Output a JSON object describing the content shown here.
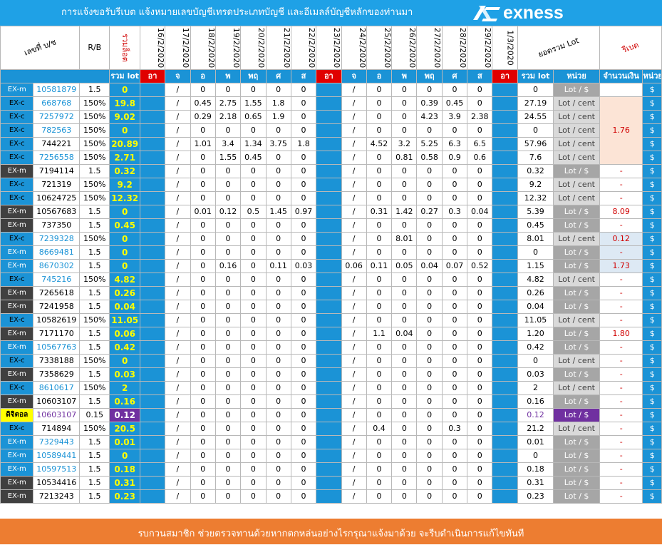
{
  "header": {
    "title": "การแจ้งขอรับรีเบต  แจ้งหมายเลขบัญชีเทรดประเภทบัญชี และอีเมลล์บัญชีหลักของท่านมา",
    "logo_text": "exness",
    "brand_color": "#1fa1e6"
  },
  "columns": {
    "account": "เลขที่ บ/ช",
    "rb": "R/B",
    "total_lot_header": "รวมล็อต",
    "dates": [
      "16/2/2020",
      "17/2/2020",
      "18/2/2020",
      "19/2/2020",
      "20/2/2020",
      "21/2/2020",
      "22/2/2020",
      "23/2/2020",
      "24/2/2020",
      "25/2/2020",
      "26/2/2020",
      "27/2/2020",
      "28/2/2020",
      "29/2/2020",
      "1/3/2020"
    ],
    "total_lot": "ยอดรวม Lot",
    "rebate": "รีเบต"
  },
  "subheader": {
    "sum_lot": "รวม lot",
    "days": [
      "อา",
      "จ",
      "อ",
      "พ",
      "พฤ",
      "ศ",
      "ส",
      "อา",
      "จ",
      "อ",
      "พ",
      "พฤ",
      "ศ",
      "ส",
      "อา"
    ],
    "sum_lot2": "รวม lot",
    "unit": "หน่วย",
    "amount": "จำนวนเงิน",
    "unit2": "หน่วย"
  },
  "rows": [
    {
      "type": "EX-m",
      "acc": "10581879",
      "rb": "1.5",
      "total": "0",
      "days": [
        "",
        "/",
        "0",
        "0",
        "0",
        "0",
        "0",
        "",
        "/",
        "0",
        "0",
        "0",
        "0",
        "0",
        ""
      ],
      "sum": "0",
      "unit": "Lot / $",
      "rebate": "",
      "cur": "$"
    },
    {
      "type": "EX-c",
      "acc": "668768",
      "rb": "150%",
      "total": "19.8",
      "days": [
        "",
        "/",
        "0.45",
        "2.75",
        "1.55",
        "1.8",
        "0",
        "",
        "/",
        "0",
        "0",
        "0.39",
        "0.45",
        "0",
        ""
      ],
      "sum": "27.19",
      "unit": "Lot / cent",
      "rebate": "",
      "cur": "$"
    },
    {
      "type": "EX-c",
      "acc": "7257972",
      "rb": "150%",
      "total": "9.02",
      "days": [
        "",
        "/",
        "0.29",
        "2.18",
        "0.65",
        "1.9",
        "0",
        "",
        "/",
        "0",
        "0",
        "4.23",
        "3.9",
        "2.38",
        ""
      ],
      "sum": "24.55",
      "unit": "Lot / cent",
      "rebate": "",
      "cur": "$"
    },
    {
      "type": "EX-c",
      "acc": "782563",
      "rb": "150%",
      "total": "0",
      "days": [
        "",
        "/",
        "0",
        "0",
        "0",
        "0",
        "0",
        "",
        "/",
        "0",
        "0",
        "0",
        "0",
        "0",
        ""
      ],
      "sum": "0",
      "unit": "Lot / cent",
      "rebate": "",
      "cur": "$"
    },
    {
      "type": "EX-c",
      "acc": "744221",
      "rb": "150%",
      "total": "20.89",
      "days": [
        "",
        "/",
        "1.01",
        "3.4",
        "1.34",
        "3.75",
        "1.8",
        "",
        "/",
        "4.52",
        "3.2",
        "5.25",
        "6.3",
        "6.5",
        ""
      ],
      "sum": "57.96",
      "unit": "Lot / cent",
      "rebate": "",
      "cur": "$"
    },
    {
      "type": "EX-c",
      "acc": "7256558",
      "rb": "150%",
      "total": "2.71",
      "days": [
        "",
        "/",
        "0",
        "1.55",
        "0.45",
        "0",
        "0",
        "",
        "/",
        "0",
        "0.81",
        "0.58",
        "0.9",
        "0.6",
        ""
      ],
      "sum": "7.6",
      "unit": "Lot / cent",
      "rebate": "",
      "cur": "$"
    },
    {
      "type": "EX-m",
      "acc": "7194114",
      "rb": "1.5",
      "total": "0.32",
      "days": [
        "",
        "/",
        "0",
        "0",
        "0",
        "0",
        "0",
        "",
        "/",
        "0",
        "0",
        "0",
        "0",
        "0",
        ""
      ],
      "sum": "0.32",
      "unit": "Lot / $",
      "rebate": "-",
      "cur": "$"
    },
    {
      "type": "EX-c",
      "acc": "721319",
      "rb": "150%",
      "total": "9.2",
      "days": [
        "",
        "/",
        "0",
        "0",
        "0",
        "0",
        "0",
        "",
        "/",
        "0",
        "0",
        "0",
        "0",
        "0",
        ""
      ],
      "sum": "9.2",
      "unit": "Lot / cent",
      "rebate": "-",
      "cur": "$"
    },
    {
      "type": "EX-c",
      "acc": "10624725",
      "rb": "150%",
      "total": "12.32",
      "days": [
        "",
        "/",
        "0",
        "0",
        "0",
        "0",
        "0",
        "",
        "/",
        "0",
        "0",
        "0",
        "0",
        "0",
        ""
      ],
      "sum": "12.32",
      "unit": "Lot / cent",
      "rebate": "-",
      "cur": "$"
    },
    {
      "type": "EX-m",
      "acc": "10567683",
      "rb": "1.5",
      "total": "0",
      "days": [
        "",
        "/",
        "0.01",
        "0.12",
        "0.5",
        "1.45",
        "0.97",
        "",
        "/",
        "0.31",
        "1.42",
        "0.27",
        "0.3",
        "0.04",
        ""
      ],
      "sum": "5.39",
      "unit": "Lot / $",
      "rebate": "8.09",
      "cur": "$"
    },
    {
      "type": "EX-m",
      "acc": "737350",
      "rb": "1.5",
      "total": "0.45",
      "days": [
        "",
        "/",
        "0",
        "0",
        "0",
        "0",
        "0",
        "",
        "/",
        "0",
        "0",
        "0",
        "0",
        "0",
        ""
      ],
      "sum": "0.45",
      "unit": "Lot / $",
      "rebate": "-",
      "cur": "$"
    },
    {
      "type": "EX-c",
      "acc": "7239328",
      "rb": "150%",
      "total": "0",
      "days": [
        "",
        "/",
        "0",
        "0",
        "0",
        "0",
        "0",
        "",
        "/",
        "0",
        "8.01",
        "0",
        "0",
        "0",
        ""
      ],
      "sum": "8.01",
      "unit": "Lot / cent",
      "rebate": "0.12",
      "cur": "$"
    },
    {
      "type": "EX-m",
      "acc": "8669481",
      "rb": "1.5",
      "total": "0",
      "days": [
        "",
        "/",
        "0",
        "0",
        "0",
        "0",
        "0",
        "",
        "/",
        "0",
        "0",
        "0",
        "0",
        "0",
        ""
      ],
      "sum": "0",
      "unit": "Lot / $",
      "rebate": "-",
      "cur": "$"
    },
    {
      "type": "EX-m",
      "acc": "8670302",
      "rb": "1.5",
      "total": "0",
      "days": [
        "",
        "/",
        "0",
        "0.16",
        "0",
        "0.11",
        "0.03",
        "",
        "0.06",
        "0.11",
        "0.05",
        "0.04",
        "0.07",
        "0.52",
        ""
      ],
      "sum": "1.15",
      "unit": "Lot / $",
      "rebate": "1.73",
      "cur": "$"
    },
    {
      "type": "EX-c",
      "acc": "745216",
      "rb": "150%",
      "total": "4.82",
      "days": [
        "",
        "/",
        "0",
        "0",
        "0",
        "0",
        "0",
        "",
        "/",
        "0",
        "0",
        "0",
        "0",
        "0",
        ""
      ],
      "sum": "4.82",
      "unit": "Lot / cent",
      "rebate": "-",
      "cur": "$"
    },
    {
      "type": "EX-m",
      "acc": "7265618",
      "rb": "1.5",
      "total": "0.26",
      "days": [
        "",
        "/",
        "0",
        "0",
        "0",
        "0",
        "0",
        "",
        "/",
        "0",
        "0",
        "0",
        "0",
        "0",
        ""
      ],
      "sum": "0.26",
      "unit": "Lot / $",
      "rebate": "-",
      "cur": "$"
    },
    {
      "type": "EX-m",
      "acc": "7241958",
      "rb": "1.5",
      "total": "0.04",
      "days": [
        "",
        "/",
        "0",
        "0",
        "0",
        "0",
        "0",
        "",
        "/",
        "0",
        "0",
        "0",
        "0",
        "0",
        ""
      ],
      "sum": "0.04",
      "unit": "Lot / $",
      "rebate": "-",
      "cur": "$"
    },
    {
      "type": "EX-c",
      "acc": "10582619",
      "rb": "150%",
      "total": "11.05",
      "days": [
        "",
        "/",
        "0",
        "0",
        "0",
        "0",
        "0",
        "",
        "/",
        "0",
        "0",
        "0",
        "0",
        "0",
        ""
      ],
      "sum": "11.05",
      "unit": "Lot / cent",
      "rebate": "-",
      "cur": "$"
    },
    {
      "type": "EX-m",
      "acc": "7171170",
      "rb": "1.5",
      "total": "0.06",
      "days": [
        "",
        "/",
        "0",
        "0",
        "0",
        "0",
        "0",
        "",
        "/",
        "1.1",
        "0.04",
        "0",
        "0",
        "0",
        ""
      ],
      "sum": "1.20",
      "unit": "Lot / $",
      "rebate": "1.80",
      "cur": "$"
    },
    {
      "type": "EX-m",
      "acc": "10567763",
      "rb": "1.5",
      "total": "0.42",
      "days": [
        "",
        "/",
        "0",
        "0",
        "0",
        "0",
        "0",
        "",
        "/",
        "0",
        "0",
        "0",
        "0",
        "0",
        ""
      ],
      "sum": "0.42",
      "unit": "Lot / $",
      "rebate": "-",
      "cur": "$"
    },
    {
      "type": "EX-c",
      "acc": "7338188",
      "rb": "150%",
      "total": "0",
      "days": [
        "",
        "/",
        "0",
        "0",
        "0",
        "0",
        "0",
        "",
        "/",
        "0",
        "0",
        "0",
        "0",
        "0",
        ""
      ],
      "sum": "0",
      "unit": "Lot / cent",
      "rebate": "-",
      "cur": "$"
    },
    {
      "type": "EX-m",
      "acc": "7358629",
      "rb": "1.5",
      "total": "0.03",
      "days": [
        "",
        "/",
        "0",
        "0",
        "0",
        "0",
        "0",
        "",
        "/",
        "0",
        "0",
        "0",
        "0",
        "0",
        ""
      ],
      "sum": "0.03",
      "unit": "Lot / $",
      "rebate": "-",
      "cur": "$"
    },
    {
      "type": "EX-c",
      "acc": "8610617",
      "rb": "150%",
      "total": "2",
      "days": [
        "",
        "/",
        "0",
        "0",
        "0",
        "0",
        "0",
        "",
        "/",
        "0",
        "0",
        "0",
        "0",
        "0",
        ""
      ],
      "sum": "2",
      "unit": "Lot / cent",
      "rebate": "-",
      "cur": "$"
    },
    {
      "type": "EX-m",
      "acc": "10603107",
      "rb": "1.5",
      "total": "0.16",
      "days": [
        "",
        "/",
        "0",
        "0",
        "0",
        "0",
        "0",
        "",
        "/",
        "0",
        "0",
        "0",
        "0",
        "0",
        ""
      ],
      "sum": "0.16",
      "unit": "Lot / $",
      "rebate": "-",
      "cur": "$"
    },
    {
      "type": "ดิจิตอล",
      "acc": "10603107",
      "rb": "0.15",
      "total": "0.12",
      "days": [
        "",
        "/",
        "0",
        "0",
        "0",
        "0",
        "0",
        "",
        "/",
        "0",
        "0",
        "0",
        "0",
        "0",
        ""
      ],
      "sum": "0.12",
      "unit": "Lot / $",
      "rebate": "-",
      "cur": "$"
    },
    {
      "type": "EX-c",
      "acc": "714894",
      "rb": "150%",
      "total": "20.5",
      "days": [
        "",
        "/",
        "0",
        "0",
        "0",
        "0",
        "0",
        "",
        "/",
        "0.4",
        "0",
        "0",
        "0.3",
        "0",
        ""
      ],
      "sum": "21.2",
      "unit": "Lot / cent",
      "rebate": "-",
      "cur": "$"
    },
    {
      "type": "EX-m",
      "acc": "7329443",
      "rb": "1.5",
      "total": "0.01",
      "days": [
        "",
        "/",
        "0",
        "0",
        "0",
        "0",
        "0",
        "",
        "/",
        "0",
        "0",
        "0",
        "0",
        "0",
        ""
      ],
      "sum": "0.01",
      "unit": "Lot / $",
      "rebate": "-",
      "cur": "$"
    },
    {
      "type": "EX-m",
      "acc": "10589441",
      "rb": "1.5",
      "total": "0",
      "days": [
        "",
        "/",
        "0",
        "0",
        "0",
        "0",
        "0",
        "",
        "/",
        "0",
        "0",
        "0",
        "0",
        "0",
        ""
      ],
      "sum": "0",
      "unit": "Lot / $",
      "rebate": "-",
      "cur": "$"
    },
    {
      "type": "EX-m",
      "acc": "10597513",
      "rb": "1.5",
      "total": "0.18",
      "days": [
        "",
        "/",
        "0",
        "0",
        "0",
        "0",
        "0",
        "",
        "/",
        "0",
        "0",
        "0",
        "0",
        "0",
        ""
      ],
      "sum": "0.18",
      "unit": "Lot / $",
      "rebate": "-",
      "cur": "$"
    },
    {
      "type": "EX-m",
      "acc": "10534416",
      "rb": "1.5",
      "total": "0.31",
      "days": [
        "",
        "/",
        "0",
        "0",
        "0",
        "0",
        "0",
        "",
        "/",
        "0",
        "0",
        "0",
        "0",
        "0",
        ""
      ],
      "sum": "0.31",
      "unit": "Lot / $",
      "rebate": "-",
      "cur": "$"
    },
    {
      "type": "EX-m",
      "acc": "7213243",
      "rb": "1.5",
      "total": "0.23",
      "days": [
        "",
        "/",
        "0",
        "0",
        "0",
        "0",
        "0",
        "",
        "/",
        "0",
        "0",
        "0",
        "0",
        "0",
        ""
      ],
      "sum": "0.23",
      "unit": "Lot / $",
      "rebate": "-",
      "cur": "$"
    }
  ],
  "merged_rebate": "1.76",
  "footer": {
    "text": "รบกวนสมาชิก ช่วยตรวจทานด้วยหากตกหล่นอย่างไรกรุณาแจ้งมาด้วย จะรีบดำเนินการแก้ไขทันที"
  }
}
